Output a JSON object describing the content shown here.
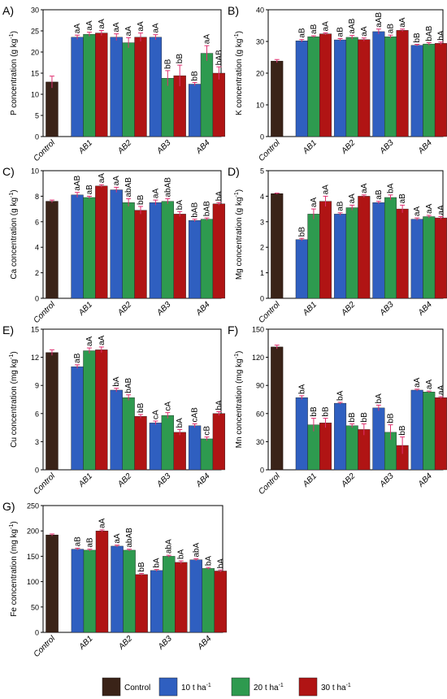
{
  "chart_data": [
    {
      "type": "bar",
      "panel_label": "A)",
      "ylabel_pre": "P concentration (g kg",
      "ylabel_sup": "-1",
      "ylabel_post": ")",
      "ylim": [
        0,
        30
      ],
      "yticks": [
        0,
        5,
        10,
        15,
        20,
        25,
        30
      ],
      "control": {
        "category": "Control",
        "value": 12.9,
        "error": 1.4
      },
      "categories": [
        "AB1",
        "AB2",
        "AB3",
        "AB4"
      ],
      "series": [
        {
          "values": [
            23.5,
            23.5,
            23.5,
            12.4
          ],
          "errors": [
            0.5,
            0.8,
            0.6,
            0.4
          ],
          "labels": [
            "aA",
            "aA",
            "aA",
            "bB"
          ]
        },
        {
          "values": [
            24.2,
            22.2,
            13.8,
            19.7
          ],
          "errors": [
            0.5,
            1.2,
            1.8,
            1.8
          ],
          "labels": [
            "aA",
            "aA",
            "bB",
            "aA"
          ]
        },
        {
          "values": [
            24.5,
            23.5,
            14.4,
            15.0
          ],
          "errors": [
            0.6,
            1.0,
            2.5,
            1.5
          ],
          "labels": [
            "aA",
            "aA",
            "bB",
            "bAB"
          ]
        }
      ]
    },
    {
      "type": "bar",
      "panel_label": "B)",
      "ylabel_pre": "K concentration (g kg",
      "ylabel_sup": "-1",
      "ylabel_post": ")",
      "ylim": [
        0,
        40
      ],
      "yticks": [
        0,
        10,
        20,
        30,
        40
      ],
      "control": {
        "category": "Control",
        "value": 23.8,
        "error": 0.5
      },
      "categories": [
        "AB1",
        "AB2",
        "AB3",
        "AB4"
      ],
      "series": [
        {
          "values": [
            30.2,
            30.5,
            33.1,
            28.8
          ],
          "errors": [
            0.4,
            0.4,
            0.8,
            0.3
          ],
          "labels": [
            "aB",
            "aB",
            "aAB",
            "bB"
          ]
        },
        {
          "values": [
            31.5,
            31.3,
            31.5,
            29.2
          ],
          "errors": [
            0.3,
            0.6,
            0.5,
            0.4
          ],
          "labels": [
            "aB",
            "aAB",
            "aB",
            "bAB"
          ]
        },
        {
          "values": [
            32.4,
            30.6,
            33.5,
            29.4
          ],
          "errors": [
            0.3,
            0.5,
            0.4,
            0.4
          ],
          "labels": [
            "aA",
            "aA",
            "aA",
            "bA"
          ]
        }
      ]
    },
    {
      "type": "bar",
      "panel_label": "C)",
      "ylabel_pre": "Ca concentration (g kg",
      "ylabel_sup": "-1",
      "ylabel_post": ")",
      "ylim": [
        0,
        10
      ],
      "yticks": [
        0,
        2,
        4,
        6,
        8,
        10
      ],
      "control": {
        "category": "Control",
        "value": 7.6,
        "error": 0.1
      },
      "categories": [
        "AB1",
        "AB2",
        "AB3",
        "AB4"
      ],
      "series": [
        {
          "values": [
            8.1,
            8.5,
            7.5,
            6.1
          ],
          "errors": [
            0.2,
            0.2,
            0.2,
            0.1
          ],
          "labels": [
            "aAB",
            "aA",
            "aA",
            "bAB"
          ]
        },
        {
          "values": [
            7.9,
            7.5,
            7.6,
            6.2
          ],
          "errors": [
            0.1,
            0.3,
            0.2,
            0.1
          ],
          "labels": [
            "aB",
            "abAB",
            "abAB",
            "bAB"
          ]
        },
        {
          "values": [
            8.8,
            6.9,
            6.6,
            7.4
          ],
          "errors": [
            0.1,
            0.3,
            0.2,
            0.1
          ],
          "labels": [
            "aA",
            "bB",
            "bA",
            "bA"
          ]
        }
      ]
    },
    {
      "type": "bar",
      "panel_label": "D)",
      "ylabel_pre": "Mg concentration (g kg",
      "ylabel_sup": "-1",
      "ylabel_post": ")",
      "ylim": [
        0,
        5
      ],
      "yticks": [
        0,
        1,
        2,
        3,
        4,
        5
      ],
      "control": {
        "category": "Control",
        "value": 4.1,
        "error": 0.02
      },
      "categories": [
        "AB1",
        "AB2",
        "AB3",
        "AB4"
      ],
      "series": [
        {
          "values": [
            2.3,
            3.3,
            3.75,
            3.1
          ],
          "errors": [
            0.05,
            0.05,
            0.05,
            0.05
          ],
          "labels": [
            "bB",
            "aB",
            "aB",
            "aA"
          ]
        },
        {
          "values": [
            3.3,
            3.55,
            3.95,
            3.2
          ],
          "errors": [
            0.2,
            0.1,
            0.1,
            0.05
          ],
          "labels": [
            "aA",
            "aA",
            "bA",
            "aA"
          ]
        },
        {
          "values": [
            3.8,
            4.0,
            3.5,
            3.15
          ],
          "errors": [
            0.2,
            0.05,
            0.15,
            0.05
          ],
          "labels": [
            "aA",
            "aA",
            "aB",
            "aA"
          ]
        }
      ]
    },
    {
      "type": "bar",
      "panel_label": "E)",
      "ylabel_pre": "Cu concentration (mg kg",
      "ylabel_sup": "-1",
      "ylabel_post": ")",
      "ylim": [
        0,
        15
      ],
      "yticks": [
        0,
        3,
        6,
        9,
        12,
        15
      ],
      "control": {
        "category": "Control",
        "value": 12.5,
        "error": 0.3
      },
      "categories": [
        "AB1",
        "AB2",
        "AB3",
        "AB4"
      ],
      "series": [
        {
          "values": [
            11.0,
            8.5,
            5.0,
            4.7
          ],
          "errors": [
            0.2,
            0.2,
            0.2,
            0.2
          ],
          "labels": [
            "aB",
            "bA",
            "cA",
            "cAB"
          ]
        },
        {
          "values": [
            12.7,
            7.7,
            5.8,
            3.3
          ],
          "errors": [
            0.3,
            0.3,
            0.3,
            0.2
          ],
          "labels": [
            "aA",
            "bAB",
            "cA",
            "cB"
          ]
        },
        {
          "values": [
            12.8,
            5.7,
            4.0,
            6.0
          ],
          "errors": [
            0.3,
            0.2,
            0.3,
            0.2
          ],
          "labels": [
            "aA",
            "bB",
            "bA",
            "bA"
          ]
        }
      ]
    },
    {
      "type": "bar",
      "panel_label": "F)",
      "ylabel_pre": "Mn concentration (mg kg",
      "ylabel_sup": "-1",
      "ylabel_post": ")",
      "ylim": [
        0,
        150
      ],
      "yticks": [
        0,
        30,
        60,
        90,
        120,
        150
      ],
      "control": {
        "category": "Control",
        "value": 131,
        "error": 2
      },
      "categories": [
        "AB1",
        "AB2",
        "AB3",
        "AB4"
      ],
      "series": [
        {
          "values": [
            77,
            71,
            66,
            85
          ],
          "errors": [
            2,
            1,
            3,
            1
          ],
          "labels": [
            "bA",
            "bA",
            "bA",
            "aA"
          ]
        },
        {
          "values": [
            48,
            47,
            40,
            83
          ],
          "errors": [
            7,
            2,
            8,
            1
          ],
          "labels": [
            "bB",
            "bB",
            "bB",
            "aA"
          ]
        },
        {
          "values": [
            50,
            43,
            26,
            77
          ],
          "errors": [
            5,
            6,
            9,
            1
          ],
          "labels": [
            "bB",
            "bB",
            "bB",
            "aA"
          ]
        }
      ]
    },
    {
      "type": "bar",
      "panel_label": "G)",
      "ylabel_pre": "Fe concentration (mg kg",
      "ylabel_sup": "-1",
      "ylabel_post": ")",
      "ylim": [
        0,
        250
      ],
      "yticks": [
        0,
        50,
        100,
        150,
        200,
        250
      ],
      "control": {
        "category": "Control",
        "value": 192,
        "error": 2
      },
      "categories": [
        "AB1",
        "AB2",
        "AB3",
        "AB4"
      ],
      "series": [
        {
          "values": [
            164,
            170,
            122,
            143
          ],
          "errors": [
            2,
            2,
            2,
            2
          ],
          "labels": [
            "aB",
            "aA",
            "bA",
            "abA"
          ]
        },
        {
          "values": [
            162,
            162,
            150,
            126
          ],
          "errors": [
            2,
            2,
            2,
            2
          ],
          "labels": [
            "aB",
            "abAB",
            "abA",
            "bA"
          ]
        },
        {
          "values": [
            200,
            114,
            138,
            121
          ],
          "errors": [
            2,
            2,
            3,
            2
          ],
          "labels": [
            "aA",
            "bB",
            "bA",
            "bA"
          ]
        }
      ]
    }
  ],
  "legend": {
    "items": [
      {
        "label": "Control",
        "sup": "",
        "post": ""
      },
      {
        "label": "10 t ha",
        "sup": "-1",
        "post": ""
      },
      {
        "label": "20 t ha",
        "sup": "-1",
        "post": ""
      },
      {
        "label": "30 t ha",
        "sup": "-1",
        "post": ""
      }
    ]
  },
  "colors": {
    "control": "#3a2318",
    "dose10": "#2f5fc0",
    "dose20": "#2e9a4f",
    "dose30": "#b01414",
    "error_bar": "#e03070",
    "axis": "#000000"
  }
}
